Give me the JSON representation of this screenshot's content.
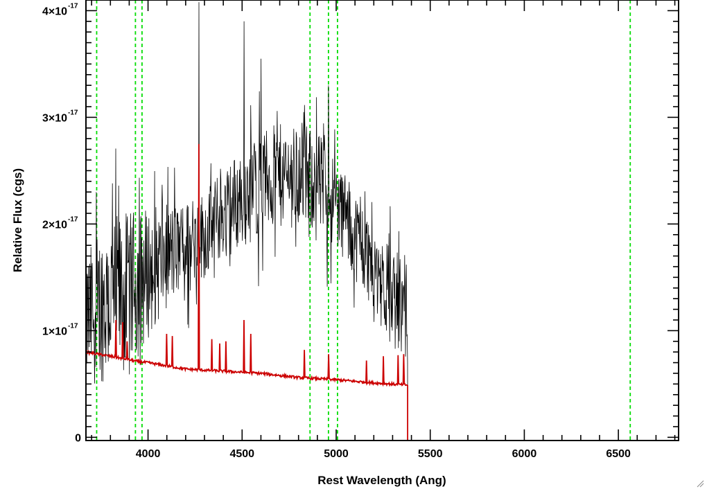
{
  "chart_data": {
    "type": "line",
    "title": "",
    "xlabel": "Rest Wavelength (Ang)",
    "ylabel": "Relative Flux (cgs)",
    "xlim": [
      3670,
      6820
    ],
    "ylim": [
      -0.03,
      4.1
    ],
    "y_scale_factor_label": "×10⁻¹⁷",
    "x_ticks": [
      4000,
      4500,
      5000,
      5500,
      6000,
      6500
    ],
    "x_tick_labels": [
      "4000",
      "4500",
      "5000",
      "5500",
      "6000",
      "6500"
    ],
    "y_ticks": [
      0,
      1,
      2,
      3,
      4
    ],
    "y_tick_labels": [
      "0",
      "1×10",
      "2×10",
      "3×10",
      "4×10"
    ],
    "y_tick_exponent": "-17",
    "grid": false,
    "series": [
      {
        "name": "",
        "role": "observed spectrum",
        "color": "#000000",
        "envelope": {
          "x": [
            3670,
            3720,
            3800,
            3900,
            4000,
            4100,
            4200,
            4300,
            4400,
            4500,
            4600,
            4700,
            4800,
            4900,
            5000,
            5100,
            5200,
            5300,
            5380
          ],
          "y": [
            1.1,
            1.2,
            1.3,
            1.35,
            1.55,
            1.7,
            1.8,
            1.9,
            2.1,
            2.25,
            2.4,
            2.45,
            2.45,
            2.4,
            2.2,
            1.9,
            1.6,
            1.3,
            1.15
          ],
          "scatter": [
            0.45,
            0.5,
            0.55,
            0.55,
            0.45,
            0.35,
            0.3,
            0.3,
            0.3,
            0.35,
            0.35,
            0.35,
            0.35,
            0.35,
            0.3,
            0.3,
            0.3,
            0.35,
            0.35
          ]
        },
        "spikes": [
          {
            "x": 4270,
            "y": 4.08
          },
          {
            "x": 4510,
            "y": 3.9
          },
          {
            "x": 4960,
            "y": 3.3
          },
          {
            "x": 3725,
            "y": 2.3
          },
          {
            "x": 4600,
            "y": 3.55
          }
        ],
        "end_x": 5380,
        "after_end_y": -0.03
      },
      {
        "name": "",
        "role": "model spectrum",
        "color": "#cc0000",
        "continuum": {
          "x": [
            3670,
            3800,
            3950,
            4000,
            4200,
            4400,
            4600,
            4800,
            5000,
            5200,
            5380
          ],
          "y": [
            0.8,
            0.76,
            0.71,
            0.7,
            0.64,
            0.62,
            0.6,
            0.56,
            0.54,
            0.51,
            0.49
          ]
        },
        "emission_lines": [
          {
            "x": 3830,
            "peak": 1.1
          },
          {
            "x": 3865,
            "peak": 1.08
          },
          {
            "x": 3890,
            "peak": 0.9
          },
          {
            "x": 4100,
            "peak": 0.97
          },
          {
            "x": 4130,
            "peak": 0.95
          },
          {
            "x": 4270,
            "peak": 2.75
          },
          {
            "x": 4340,
            "peak": 0.92
          },
          {
            "x": 4380,
            "peak": 0.88
          },
          {
            "x": 4415,
            "peak": 0.9
          },
          {
            "x": 4510,
            "peak": 1.1
          },
          {
            "x": 4545,
            "peak": 0.97
          },
          {
            "x": 4830,
            "peak": 0.82
          },
          {
            "x": 4960,
            "peak": 0.78
          },
          {
            "x": 5160,
            "peak": 0.72
          },
          {
            "x": 5250,
            "peak": 0.76
          },
          {
            "x": 5330,
            "peak": 0.77
          },
          {
            "x": 5360,
            "peak": 0.78
          }
        ],
        "end_x": 5380,
        "after_end_y": -0.03
      }
    ],
    "reference_lines": {
      "color": "#00dd00",
      "style": "dashed",
      "x": [
        3727,
        3933,
        3968,
        4861,
        4959,
        5007,
        6563
      ]
    }
  }
}
